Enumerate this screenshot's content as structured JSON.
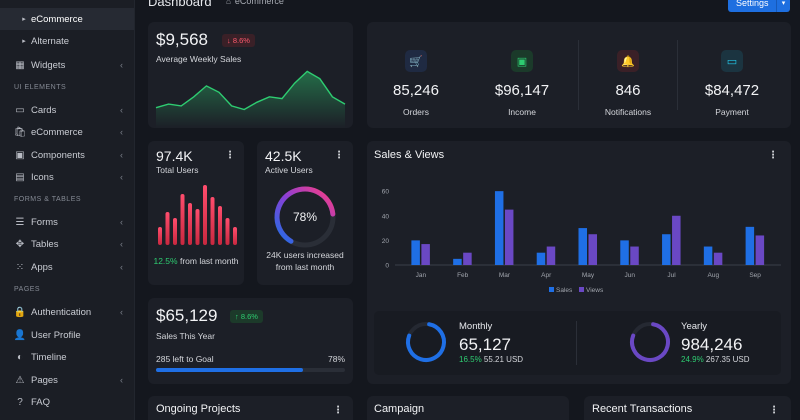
{
  "header": {
    "title": "Dashboard",
    "breadcrumb": "eCommerce",
    "settings_label": "Settings"
  },
  "sidebar": {
    "sub_items": [
      "eCommerce",
      "Alternate"
    ],
    "items_top": [
      {
        "label": "Widgets",
        "icon": "widgets-icon"
      }
    ],
    "section_ui": "UI ELEMENTS",
    "ui_items": [
      {
        "label": "Cards",
        "icon": "cards-icon"
      },
      {
        "label": "eCommerce",
        "icon": "ecommerce-icon"
      },
      {
        "label": "Components",
        "icon": "components-icon"
      },
      {
        "label": "Icons",
        "icon": "icons-icon"
      }
    ],
    "section_forms": "FORMS & TABLES",
    "form_items": [
      {
        "label": "Forms",
        "icon": "forms-icon"
      },
      {
        "label": "Tables",
        "icon": "tables-icon"
      },
      {
        "label": "Apps",
        "icon": "apps-icon"
      }
    ],
    "section_pages": "PAGES",
    "page_items": [
      {
        "label": "Authentication",
        "icon": "lock-icon"
      },
      {
        "label": "User Profile",
        "icon": "user-icon"
      },
      {
        "label": "Timeline",
        "icon": "timeline-icon"
      },
      {
        "label": "Pages",
        "icon": "pages-icon"
      },
      {
        "label": "FAQ",
        "icon": "help-icon"
      }
    ]
  },
  "weekly": {
    "value": "$9,568",
    "change": "8.6%",
    "label": "Average Weekly Sales",
    "sparkline": [
      18,
      22,
      20,
      30,
      42,
      35,
      20,
      16,
      24,
      30,
      28,
      45,
      58,
      50,
      30,
      22
    ]
  },
  "stats": [
    {
      "value": "85,246",
      "label": "Orders",
      "icon": "cart-icon",
      "color": "#3b82f6"
    },
    {
      "value": "$96,147",
      "label": "Income",
      "icon": "printer-icon",
      "color": "#2ecc71"
    },
    {
      "value": "846",
      "label": "Notifications",
      "icon": "bell-icon",
      "color": "#ff4d6d"
    },
    {
      "value": "$84,472",
      "label": "Payment",
      "icon": "card-icon",
      "color": "#22c7e8"
    }
  ],
  "total_users": {
    "value": "97.4K",
    "label": "Total Users",
    "change": "12.5%",
    "change_text": "from last month",
    "bars": [
      30,
      55,
      45,
      85,
      70,
      60,
      100,
      80,
      65,
      45,
      30
    ]
  },
  "active_users": {
    "value": "42.5K",
    "label": "Active Users",
    "percent_text": "78%",
    "percent": 78,
    "caption": "24K users increased from last month"
  },
  "sales_year": {
    "value": "$65,129",
    "change": "8.6%",
    "label": "Sales This Year",
    "goal_text": "285 left to Goal",
    "progress_text": "78%",
    "progress": 78
  },
  "sales_views": {
    "title": "Sales & Views",
    "monthly": {
      "title": "Monthly",
      "value": "65,127",
      "change": "16.5%",
      "amount": "55.21 USD",
      "percent": 78
    },
    "yearly": {
      "title": "Yearly",
      "value": "984,246",
      "change": "24.9%",
      "amount": "267.35 USD",
      "percent": 78
    }
  },
  "chart_data": {
    "type": "bar",
    "categories": [
      "Jan",
      "Feb",
      "Mar",
      "Apr",
      "May",
      "Jun",
      "Jul",
      "Aug",
      "Sep"
    ],
    "series": [
      {
        "name": "Sales",
        "values": [
          20,
          5,
          60,
          10,
          30,
          20,
          25,
          15,
          31
        ]
      },
      {
        "name": "Views",
        "values": [
          17,
          10,
          45,
          15,
          25,
          15,
          40,
          10,
          24
        ]
      }
    ],
    "yticks": [
      "0",
      "20",
      "40",
      "60"
    ],
    "ylim": [
      0,
      65
    ],
    "legend": [
      "Sales",
      "Views"
    ],
    "colors": {
      "Sales": "#1f6fe5",
      "Views": "#6a48c4"
    }
  },
  "bottom": {
    "projects": "Ongoing Projects",
    "campaign": "Campaign",
    "transactions": "Recent Transactions"
  },
  "colors": {
    "accent": "#1e6fe0",
    "green": "#2ecc71",
    "red": "#ff5a6e",
    "card": "#1c1f27"
  }
}
